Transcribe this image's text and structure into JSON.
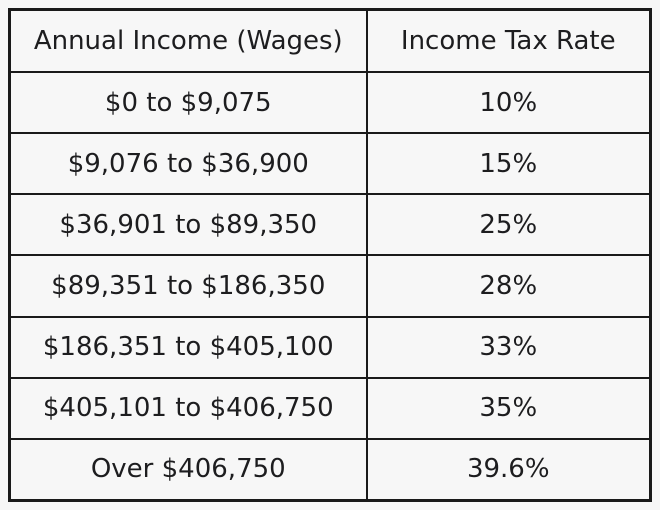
{
  "colors": {
    "background": "#f7f7f7",
    "border": "#1a1a1a",
    "text": "#1d1d1f"
  },
  "table": {
    "headers": [
      "Annual Income (Wages)",
      "Income Tax Rate"
    ],
    "rows": [
      [
        "$0 to $9,075",
        "10%"
      ],
      [
        "$9,076 to $36,900",
        "15%"
      ],
      [
        "$36,901 to $89,350",
        "25%"
      ],
      [
        "$89,351 to $186,350",
        "28%"
      ],
      [
        "$186,351 to $405,100",
        "33%"
      ],
      [
        "$405,101 to $406,750",
        "35%"
      ],
      [
        "Over $406,750",
        "39.6%"
      ]
    ]
  },
  "chart_data": {
    "type": "table",
    "columns": [
      "Annual Income (Wages)",
      "Income Tax Rate"
    ],
    "rows": [
      [
        "$0 to $9,075",
        "10%"
      ],
      [
        "$9,076 to $36,900",
        "15%"
      ],
      [
        "$36,901 to $89,350",
        "25%"
      ],
      [
        "$89,351 to $186,350",
        "28%"
      ],
      [
        "$186,351 to $405,100",
        "33%"
      ],
      [
        "$405,101 to $406,750",
        "35%"
      ],
      [
        "Over $406,750",
        "39.6%"
      ]
    ],
    "tax_brackets": [
      {
        "income_min": 0,
        "income_max": 9075,
        "rate_percent": 10
      },
      {
        "income_min": 9076,
        "income_max": 36900,
        "rate_percent": 15
      },
      {
        "income_min": 36901,
        "income_max": 89350,
        "rate_percent": 25
      },
      {
        "income_min": 89351,
        "income_max": 186350,
        "rate_percent": 28
      },
      {
        "income_min": 186351,
        "income_max": 405100,
        "rate_percent": 33
      },
      {
        "income_min": 405101,
        "income_max": 406750,
        "rate_percent": 35
      },
      {
        "income_min": 406751,
        "income_max": null,
        "rate_percent": 39.6
      }
    ]
  }
}
